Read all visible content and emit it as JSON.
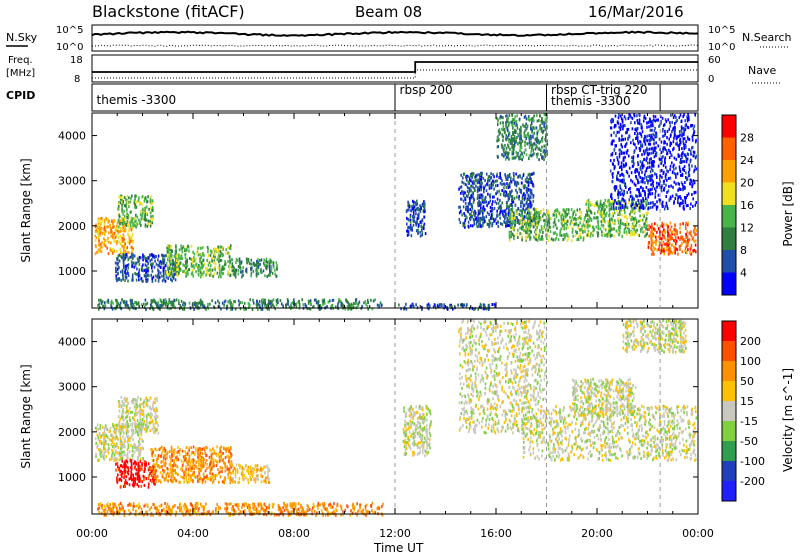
{
  "header": {
    "station": "Blackstone (fitACF)",
    "beam": "Beam 08",
    "date": "16/Mar/2016"
  },
  "left_labels": {
    "nsky": "N.Sky",
    "freq_top": "Freq.",
    "freq_unit": "[MHz]",
    "cpid": "CPID"
  },
  "right_labels": {
    "nsearch": "N.Search",
    "nave": "Nave"
  },
  "noise_ticks": {
    "left": [
      "10^5",
      "10^0"
    ],
    "right": [
      "10^5",
      "10^0"
    ]
  },
  "freq_ticks": {
    "left": [
      "18",
      "8"
    ],
    "right": [
      "60",
      "0"
    ]
  },
  "cpid_entries": [
    {
      "label": "themis -3300",
      "start_hour": 0.1
    },
    {
      "label": "rbsp 200",
      "start_hour": 12.1
    },
    {
      "label": "rbsp CT-trig 220",
      "start_hour": 18.1
    },
    {
      "label": "themis -3300",
      "start_hour": 18.1
    }
  ],
  "cpid_boundaries_hours": [
    12.0,
    18.0,
    22.5
  ],
  "colors": {
    "power_scale": [
      "#0000ff",
      "#1f4fa8",
      "#2f7f3f",
      "#49b449",
      "#f0e020",
      "#ffa000",
      "#ff6000",
      "#ff0000"
    ],
    "velocity_scale": [
      "#ff0000",
      "#ff5000",
      "#ff9000",
      "#ffc000",
      "#c8c8be",
      "#7fcf3f",
      "#2f9f4f",
      "#1f3fbf",
      "#2020ff"
    ],
    "ground_scatter": "#c8c8be",
    "background": "#ffffff"
  },
  "chart_data": [
    {
      "type": "heatmap",
      "name": "power",
      "xlabel": "",
      "ylabel": "Slant Range [km]",
      "xlim": [
        0,
        24
      ],
      "ylim": [
        180,
        4500
      ],
      "yticks": [
        "1000",
        "2000",
        "3000",
        "4000"
      ],
      "colorbar_label": "Power [dB]",
      "colorbar_ticks": [
        "28",
        "24",
        "20",
        "16",
        "12",
        "8",
        "4"
      ],
      "regions": [
        {
          "t0": 0.1,
          "t1": 1.6,
          "r0": 1400,
          "r1": 2200,
          "level": 5
        },
        {
          "t0": 1.0,
          "t1": 2.4,
          "r0": 2000,
          "r1": 2700,
          "level": 3
        },
        {
          "t0": 0.9,
          "t1": 3.3,
          "r0": 800,
          "r1": 1400,
          "level": 1
        },
        {
          "t0": 2.9,
          "t1": 5.5,
          "r0": 900,
          "r1": 1600,
          "level": 3
        },
        {
          "t0": 5.5,
          "t1": 7.3,
          "r0": 900,
          "r1": 1300,
          "level": 2
        },
        {
          "t0": 0.2,
          "t1": 11.5,
          "r0": 180,
          "r1": 400,
          "level": 2
        },
        {
          "t0": 12.4,
          "t1": 13.2,
          "r0": 1800,
          "r1": 2600,
          "level": 1
        },
        {
          "t0": 14.5,
          "t1": 17.5,
          "r0": 2000,
          "r1": 3200,
          "level": 1
        },
        {
          "t0": 16.0,
          "t1": 18.0,
          "r0": 3500,
          "r1": 4500,
          "level": 2
        },
        {
          "t0": 16.5,
          "t1": 19.5,
          "r0": 1700,
          "r1": 2400,
          "level": 3
        },
        {
          "t0": 19.5,
          "t1": 22.0,
          "r0": 1800,
          "r1": 2600,
          "level": 3
        },
        {
          "t0": 22.0,
          "t1": 23.9,
          "r0": 1400,
          "r1": 2100,
          "level": 6
        },
        {
          "t0": 20.5,
          "t1": 23.9,
          "r0": 2400,
          "r1": 4500,
          "level": 0
        },
        {
          "t0": 12.0,
          "t1": 16.0,
          "r0": 180,
          "r1": 300,
          "level": 1
        }
      ]
    },
    {
      "type": "heatmap",
      "name": "velocity",
      "xlabel": "Time UT",
      "ylabel": "Slant Range [km]",
      "xlim": [
        0,
        24
      ],
      "ylim": [
        180,
        4500
      ],
      "xticks": [
        "00:00",
        "04:00",
        "08:00",
        "12:00",
        "16:00",
        "20:00",
        "00:00"
      ],
      "yticks": [
        "1000",
        "2000",
        "3000",
        "4000"
      ],
      "colorbar_label": "Velocity [m s^-1]",
      "colorbar_ticks": [
        "200",
        "100",
        "50",
        "15",
        "-15",
        "-50",
        "-100",
        "-200"
      ],
      "regions": [
        {
          "t0": 0.1,
          "t1": 2.0,
          "r0": 1400,
          "r1": 2200,
          "level": 4
        },
        {
          "t0": 1.0,
          "t1": 2.6,
          "r0": 2000,
          "r1": 2800,
          "level": 4
        },
        {
          "t0": 0.9,
          "t1": 2.5,
          "r0": 800,
          "r1": 1400,
          "level": 0
        },
        {
          "t0": 2.3,
          "t1": 5.5,
          "r0": 900,
          "r1": 1700,
          "level": 2
        },
        {
          "t0": 5.5,
          "t1": 7.0,
          "r0": 900,
          "r1": 1300,
          "level": 3
        },
        {
          "t0": 0.2,
          "t1": 11.5,
          "r0": 180,
          "r1": 450,
          "level": 2
        },
        {
          "t0": 12.3,
          "t1": 13.4,
          "r0": 1500,
          "r1": 2600,
          "level": 4
        },
        {
          "t0": 14.5,
          "t1": 18.0,
          "r0": 2000,
          "r1": 4500,
          "level": 4
        },
        {
          "t0": 17.0,
          "t1": 23.9,
          "r0": 1400,
          "r1": 2600,
          "level": 4
        },
        {
          "t0": 19.0,
          "t1": 21.5,
          "r0": 2400,
          "r1": 3200,
          "level": 4
        },
        {
          "t0": 21.0,
          "t1": 23.5,
          "r0": 3800,
          "r1": 4500,
          "level": 4
        }
      ]
    }
  ]
}
